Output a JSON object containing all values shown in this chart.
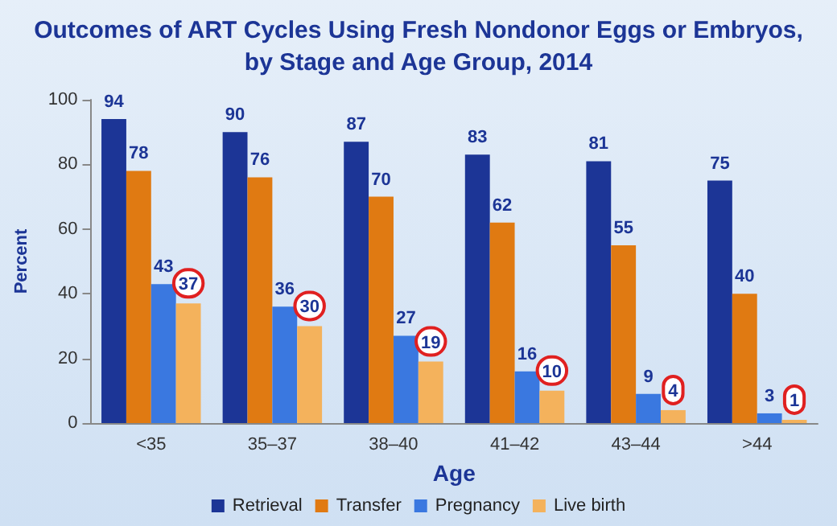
{
  "chart_data": {
    "type": "bar",
    "title": "Outcomes of ART Cycles Using Fresh Nondonor Eggs or Embryos,\nby Stage and Age Group, 2014",
    "xlabel": "Age",
    "ylabel": "Percent",
    "categories": [
      "<35",
      "35–37",
      "38–40",
      "41–42",
      "43–44",
      ">44"
    ],
    "series": [
      {
        "name": "Retrieval",
        "color": "#1c3596",
        "values": [
          94,
          90,
          87,
          83,
          81,
          75
        ]
      },
      {
        "name": "Transfer",
        "color": "#e07a12",
        "values": [
          78,
          76,
          70,
          62,
          55,
          40
        ]
      },
      {
        "name": "Pregnancy",
        "color": "#3a78e0",
        "values": [
          43,
          36,
          27,
          16,
          9,
          3
        ]
      },
      {
        "name": "Live birth",
        "color": "#f4b25c",
        "values": [
          37,
          30,
          19,
          10,
          4,
          1
        ]
      }
    ],
    "ylim": [
      0,
      100
    ],
    "yticks": [
      0,
      20,
      40,
      60,
      80,
      100
    ],
    "data_labels": true,
    "legend": "bottom",
    "grid": false
  }
}
